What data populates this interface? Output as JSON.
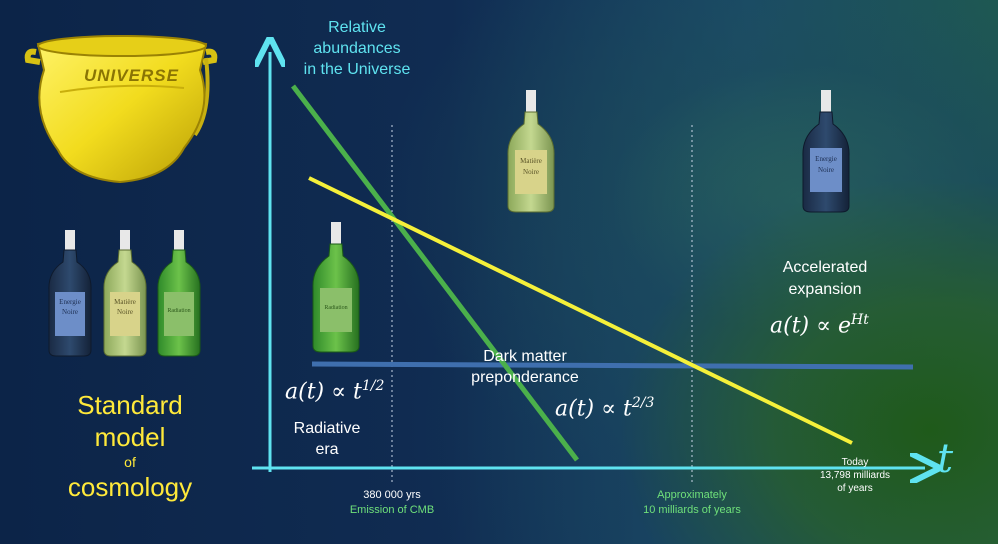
{
  "axes": {
    "y_label": [
      "Relative",
      "abundances",
      "in the Universe"
    ],
    "x_label": "t"
  },
  "eras": {
    "radiative": {
      "formula_lhs": "a(t) ∝ t",
      "exponent": "1/2",
      "label": [
        "Radiative",
        "era"
      ]
    },
    "matter": {
      "title": [
        "Dark matter",
        "preponderance"
      ],
      "formula_lhs": "a(t) ∝ t",
      "exponent": "2/3"
    },
    "accelerated": {
      "title": [
        "Accelerated",
        "expansion"
      ],
      "formula_lhs": "a(t) ∝ e",
      "exponent": "Ht"
    }
  },
  "time_markers": {
    "cmb": [
      "380 000 yrs",
      "Emission of CMB"
    ],
    "ten_billion": [
      "Approximately",
      "10 milliards of years"
    ],
    "today": [
      "Today",
      "13,798 milliards",
      "of years"
    ]
  },
  "title": {
    "line1": "Standard",
    "line2": "model",
    "line3": "of",
    "line4": "cosmology"
  },
  "bucket_label": "UNIVERSE",
  "bottles": {
    "dark_energy": [
      "Energie",
      "Noire"
    ],
    "dark_matter": [
      "Matière",
      "Noire"
    ],
    "radiation": "Radiation"
  },
  "colors": {
    "axis": "#5fe3f0",
    "radiation_line": "#4bb04b",
    "matter_line": "#f5f03a",
    "dark_energy_line": "#3f6fae",
    "title": "#ffe93a"
  }
}
